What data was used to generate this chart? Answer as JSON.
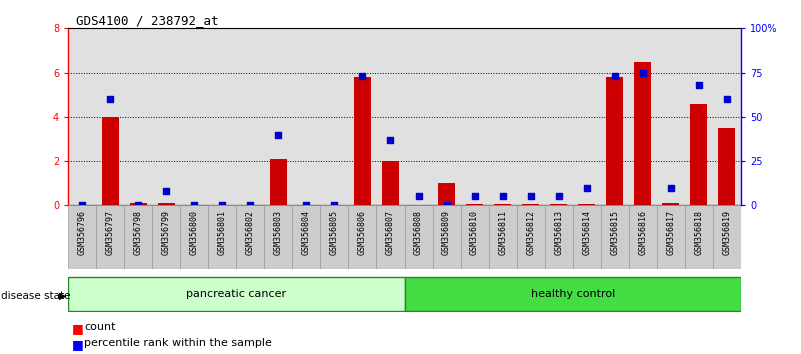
{
  "title": "GDS4100 / 238792_at",
  "samples": [
    "GSM356796",
    "GSM356797",
    "GSM356798",
    "GSM356799",
    "GSM356800",
    "GSM356801",
    "GSM356802",
    "GSM356803",
    "GSM356804",
    "GSM356805",
    "GSM356806",
    "GSM356807",
    "GSM356808",
    "GSM356809",
    "GSM356810",
    "GSM356811",
    "GSM356812",
    "GSM356813",
    "GSM356814",
    "GSM356815",
    "GSM356816",
    "GSM356817",
    "GSM356818",
    "GSM356819"
  ],
  "counts": [
    0,
    4.0,
    0.1,
    0.1,
    0,
    0,
    0,
    2.1,
    0,
    0,
    5.8,
    2.0,
    0,
    1.0,
    0.05,
    0.05,
    0.05,
    0.05,
    0.05,
    5.8,
    6.5,
    0.1,
    4.6,
    3.5
  ],
  "percentiles": [
    0,
    60,
    0,
    8,
    0,
    0,
    0,
    40,
    0,
    0,
    73,
    37,
    5,
    0,
    5,
    5,
    5,
    5,
    10,
    73,
    75,
    10,
    68,
    60
  ],
  "ylim_left": [
    0,
    8
  ],
  "ylim_right": [
    0,
    100
  ],
  "yticks_left": [
    0,
    2,
    4,
    6,
    8
  ],
  "yticks_right": [
    0,
    25,
    50,
    75,
    100
  ],
  "bar_color": "#cc0000",
  "scatter_color": "#0000cc",
  "pancreatic_light": "#ccffcc",
  "pancreatic_dark": "#44cc44",
  "healthy_light": "#44cc44",
  "healthy_dark": "#44cc44",
  "plot_bg": "#e0e0e0",
  "tick_label_bg": "#d0d0d0",
  "title_fontsize": 9,
  "tick_fontsize": 7,
  "label_fontsize": 8,
  "n_pancreatic": 12,
  "n_healthy": 12
}
